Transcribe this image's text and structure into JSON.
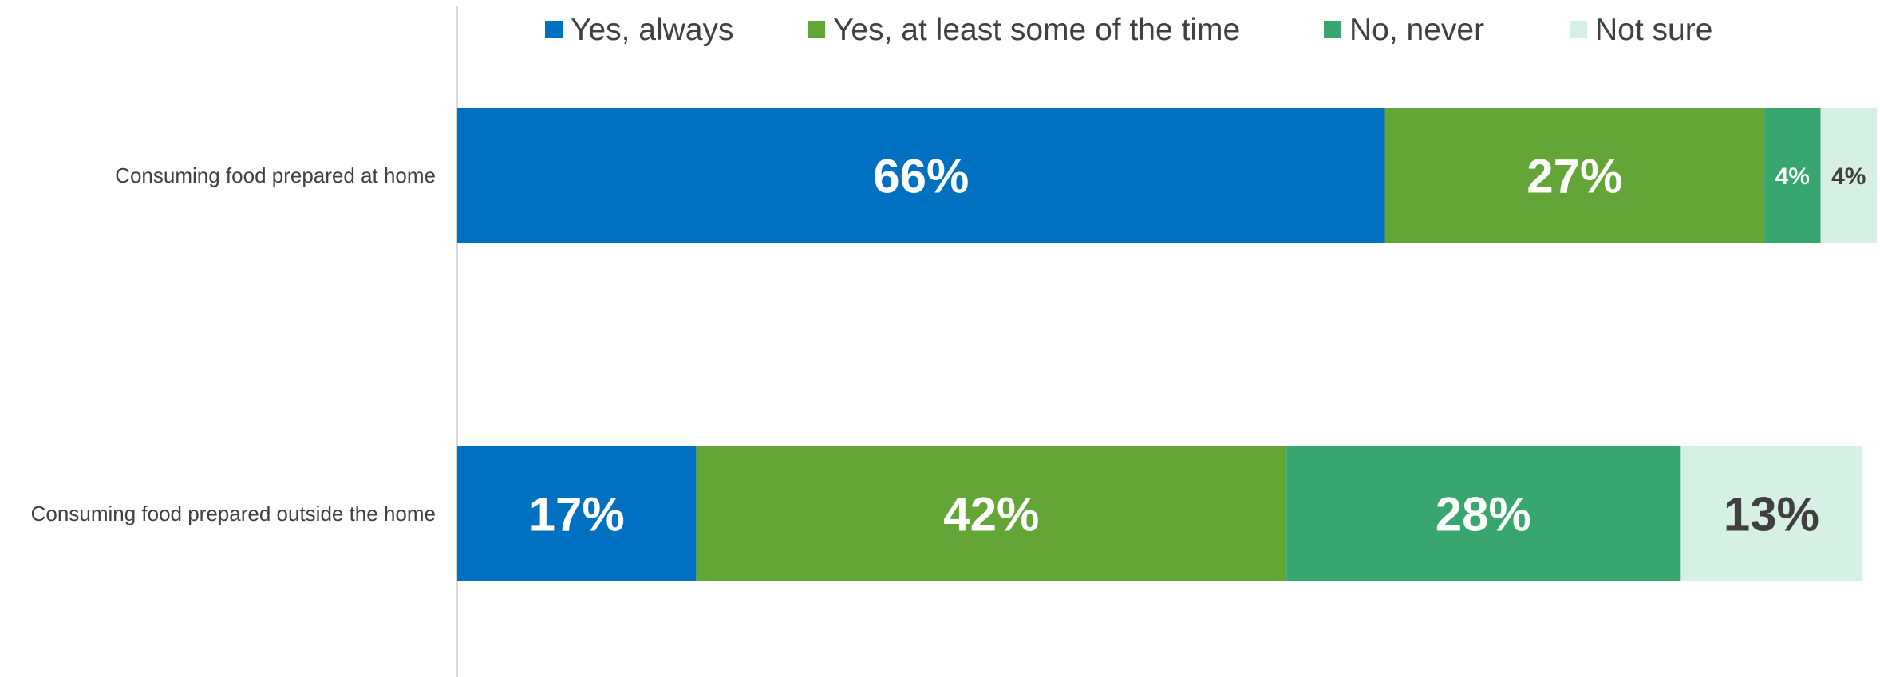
{
  "chart_data": {
    "type": "bar",
    "orientation": "horizontal",
    "stacked": true,
    "categories": [
      "Consuming food prepared at home",
      "Consuming food prepared outside the home"
    ],
    "series": [
      {
        "name": "Yes, always",
        "color": "#0070C0",
        "values": [
          66,
          17
        ],
        "labels": [
          "66%",
          "17%"
        ],
        "label_color": "#ffffff"
      },
      {
        "name": "Yes, at least some of the time",
        "color": "#63A537",
        "values": [
          27,
          42
        ],
        "labels": [
          "27%",
          "42%"
        ],
        "label_color": "#ffffff"
      },
      {
        "name": "No, never",
        "color": "#37A76F",
        "values": [
          4,
          28
        ],
        "labels": [
          "4%",
          "28%"
        ],
        "label_color": "#ffffff"
      },
      {
        "name": "Not sure",
        "color": "#D6F1E4",
        "values": [
          4,
          13
        ],
        "labels": [
          "4%",
          "13%"
        ],
        "label_color": "#404040"
      }
    ],
    "xlim": [
      0,
      101
    ],
    "unit": "%",
    "legend": "top",
    "grid": false,
    "title": "",
    "xlabel": "",
    "ylabel": ""
  }
}
